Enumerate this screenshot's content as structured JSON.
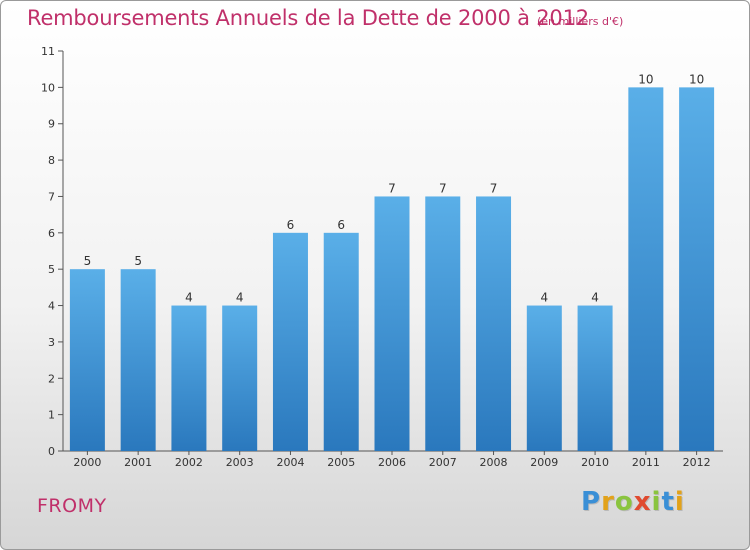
{
  "header": {
    "title": "Remboursements Annuels de la Dette de 2000 à 2012",
    "unit": "(en milliers d'€)"
  },
  "footer": {
    "town": "FROMY",
    "logo_letters": [
      "P",
      "r",
      "o",
      "x",
      "i",
      "t",
      "i"
    ],
    "logo_colors": [
      "#3a8fd6",
      "#e2a21a",
      "#8ac43f",
      "#e04a2f",
      "#8ac43f",
      "#3a8fd6",
      "#e2a21a"
    ]
  },
  "colors": {
    "bar": "#3d95d9",
    "bar_light": "#5aafe8",
    "bar_dark": "#2a78bd",
    "title": "#c0306a"
  },
  "chart_data": {
    "type": "bar",
    "title": "Remboursements Annuels de la Dette de 2000 à 2012",
    "subtitle": "(en milliers d'€)",
    "categories": [
      "2000",
      "2001",
      "2002",
      "2003",
      "2004",
      "2005",
      "2006",
      "2007",
      "2008",
      "2009",
      "2010",
      "2011",
      "2012"
    ],
    "values": [
      5,
      5,
      4,
      4,
      6,
      6,
      7,
      7,
      7,
      4,
      4,
      10,
      10
    ],
    "ylim": [
      0,
      11
    ],
    "yticks": [
      0,
      1,
      2,
      3,
      4,
      5,
      6,
      7,
      8,
      9,
      10,
      11
    ],
    "grid": false,
    "legend": "none"
  }
}
